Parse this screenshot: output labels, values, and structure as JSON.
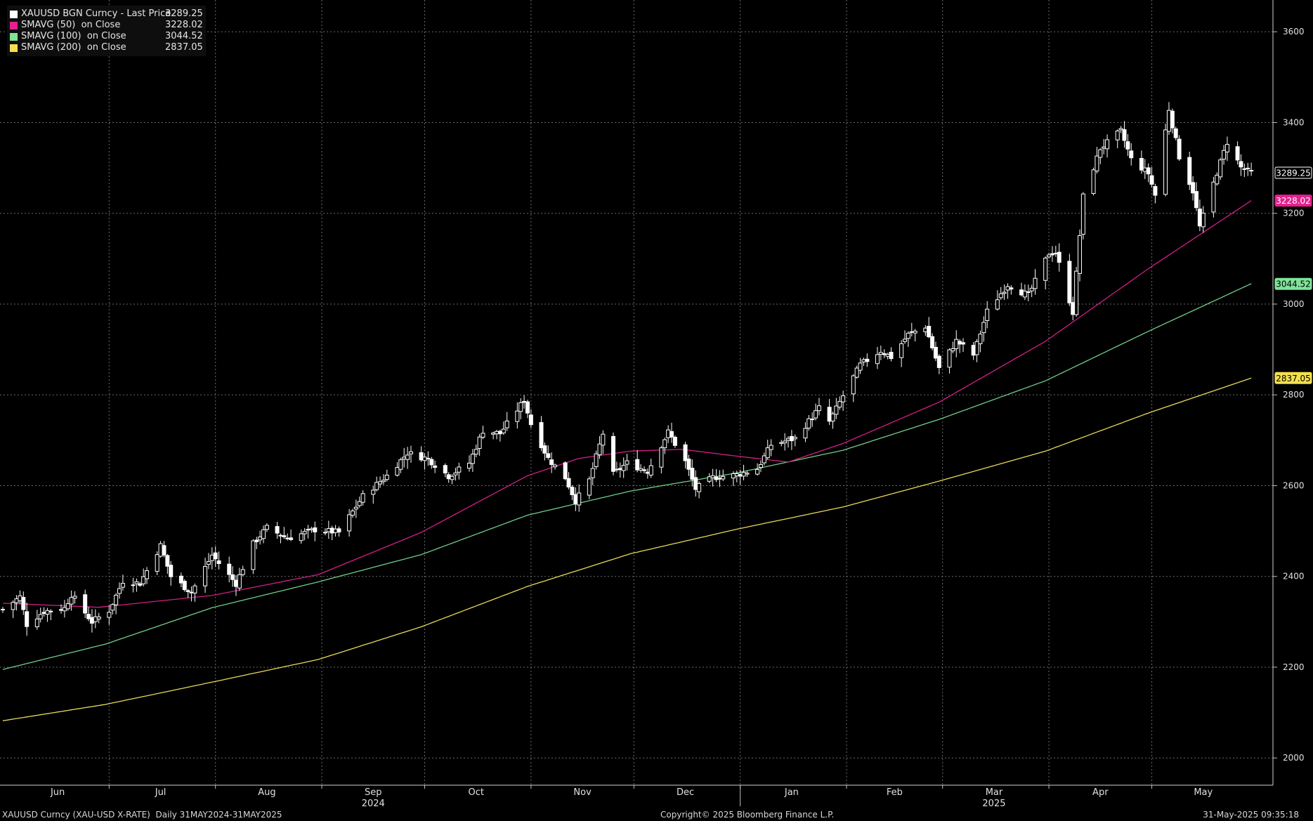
{
  "legend": [
    {
      "name": "XAUUSD BGN Curncy - Last Price",
      "value": "3289.25",
      "color": "#ffffff"
    },
    {
      "name": "SMAVG (50)  on Close",
      "value": "3228.02",
      "color": "#e6208f"
    },
    {
      "name": "SMAVG (100)  on Close",
      "value": "3044.52",
      "color": "#7fe39a"
    },
    {
      "name": "SMAVG (200)  on Close",
      "value": "2837.05",
      "color": "#f4e04d"
    }
  ],
  "footer": {
    "left": "XAUUSD Curncy (XAU-USD X-RATE)  Daily 31MAY2024-31MAY2025",
    "center": "Copyright© 2025 Bloomberg Finance L.P.",
    "right": "31-May-2025 09:35:18"
  },
  "chart_data": {
    "type": "candlestick",
    "ylim": [
      1940,
      3670
    ],
    "yticks": [
      2000,
      2200,
      2400,
      2600,
      2800,
      3000,
      3200,
      3400,
      3600
    ],
    "x_range": [
      "2024-05-31",
      "2025-05-31"
    ],
    "month_labels": [
      {
        "date": "2024-06-16",
        "label": "Jun"
      },
      {
        "date": "2024-07-16",
        "label": "Jul"
      },
      {
        "date": "2024-08-16",
        "label": "Aug"
      },
      {
        "date": "2024-09-16",
        "label": "Sep"
      },
      {
        "date": "2024-10-16",
        "label": "Oct"
      },
      {
        "date": "2024-11-16",
        "label": "Nov"
      },
      {
        "date": "2024-12-16",
        "label": "Dec"
      },
      {
        "date": "2025-01-16",
        "label": "Jan"
      },
      {
        "date": "2025-02-15",
        "label": "Feb"
      },
      {
        "date": "2025-03-16",
        "label": "Mar"
      },
      {
        "date": "2025-04-16",
        "label": "Apr"
      },
      {
        "date": "2025-05-16",
        "label": "May"
      }
    ],
    "year_labels": [
      {
        "date": "2024-09-16",
        "label": "2024"
      },
      {
        "date": "2025-03-16",
        "label": "2025"
      }
    ],
    "close_anchors": [
      [
        "2024-05-31",
        2327
      ],
      [
        "2024-06-05",
        2355
      ],
      [
        "2024-06-07",
        2294
      ],
      [
        "2024-06-12",
        2323
      ],
      [
        "2024-06-18",
        2330
      ],
      [
        "2024-06-20",
        2360
      ],
      [
        "2024-06-26",
        2300
      ],
      [
        "2024-07-01",
        2325
      ],
      [
        "2024-07-05",
        2390
      ],
      [
        "2024-07-10",
        2385
      ],
      [
        "2024-07-16",
        2468
      ],
      [
        "2024-07-19",
        2400
      ],
      [
        "2024-07-25",
        2365
      ],
      [
        "2024-07-31",
        2447
      ],
      [
        "2024-08-07",
        2384
      ],
      [
        "2024-08-12",
        2472
      ],
      [
        "2024-08-16",
        2507
      ],
      [
        "2024-08-22",
        2484
      ],
      [
        "2024-08-30",
        2503
      ],
      [
        "2024-09-06",
        2497
      ],
      [
        "2024-09-13",
        2577
      ],
      [
        "2024-09-20",
        2622
      ],
      [
        "2024-09-26",
        2672
      ],
      [
        "2024-10-02",
        2659
      ],
      [
        "2024-10-08",
        2621
      ],
      [
        "2024-10-14",
        2650
      ],
      [
        "2024-10-18",
        2721
      ],
      [
        "2024-10-23",
        2715
      ],
      [
        "2024-10-30",
        2788
      ],
      [
        "2024-11-01",
        2736
      ],
      [
        "2024-11-06",
        2660
      ],
      [
        "2024-11-11",
        2618
      ],
      [
        "2024-11-14",
        2566
      ],
      [
        "2024-11-18",
        2612
      ],
      [
        "2024-11-22",
        2715
      ],
      [
        "2024-11-25",
        2625
      ],
      [
        "2024-11-29",
        2650
      ],
      [
        "2024-12-05",
        2632
      ],
      [
        "2024-12-11",
        2718
      ],
      [
        "2024-12-16",
        2653
      ],
      [
        "2024-12-19",
        2593
      ],
      [
        "2024-12-24",
        2618
      ],
      [
        "2024-12-31",
        2624
      ],
      [
        "2025-01-06",
        2637
      ],
      [
        "2025-01-10",
        2690
      ],
      [
        "2025-01-17",
        2704
      ],
      [
        "2025-01-24",
        2771
      ],
      [
        "2025-01-27",
        2741
      ],
      [
        "2025-01-31",
        2798
      ],
      [
        "2025-02-05",
        2866
      ],
      [
        "2025-02-11",
        2897
      ],
      [
        "2025-02-14",
        2883
      ],
      [
        "2025-02-19",
        2933
      ],
      [
        "2025-02-24",
        2951
      ],
      [
        "2025-02-28",
        2858
      ],
      [
        "2025-03-05",
        2919
      ],
      [
        "2025-03-10",
        2888
      ],
      [
        "2025-03-14",
        2984
      ],
      [
        "2025-03-20",
        3043
      ],
      [
        "2025-03-26",
        3019
      ],
      [
        "2025-04-01",
        3112
      ],
      [
        "2025-04-03",
        3114
      ],
      [
        "2025-04-08",
        2982
      ],
      [
        "2025-04-11",
        3237
      ],
      [
        "2025-04-16",
        3343
      ],
      [
        "2025-04-22",
        3381
      ],
      [
        "2025-04-25",
        3319
      ],
      [
        "2025-04-30",
        3288
      ],
      [
        "2025-05-02",
        3240
      ],
      [
        "2025-05-06",
        3430
      ],
      [
        "2025-05-09",
        3325
      ],
      [
        "2025-05-13",
        3249
      ],
      [
        "2025-05-15",
        3170
      ],
      [
        "2025-05-20",
        3290
      ],
      [
        "2025-05-23",
        3357
      ],
      [
        "2025-05-27",
        3301
      ],
      [
        "2025-05-30",
        3289
      ]
    ],
    "sma50_anchors": [
      [
        "2024-05-31",
        2341
      ],
      [
        "2024-06-28",
        2332
      ],
      [
        "2024-07-31",
        2358
      ],
      [
        "2024-08-31",
        2404
      ],
      [
        "2024-09-30",
        2497
      ],
      [
        "2024-10-31",
        2622
      ],
      [
        "2024-11-15",
        2660
      ],
      [
        "2024-11-30",
        2676
      ],
      [
        "2024-12-15",
        2680
      ],
      [
        "2024-12-31",
        2665
      ],
      [
        "2025-01-15",
        2652
      ],
      [
        "2025-01-31",
        2693
      ],
      [
        "2025-02-28",
        2784
      ],
      [
        "2025-03-31",
        2918
      ],
      [
        "2025-04-30",
        3078
      ],
      [
        "2025-05-30",
        3228
      ]
    ],
    "sma100_anchors": [
      [
        "2024-05-31",
        2195
      ],
      [
        "2024-06-30",
        2251
      ],
      [
        "2024-07-31",
        2331
      ],
      [
        "2024-08-31",
        2388
      ],
      [
        "2024-09-30",
        2448
      ],
      [
        "2024-10-31",
        2535
      ],
      [
        "2024-11-30",
        2588
      ],
      [
        "2024-12-31",
        2628
      ],
      [
        "2025-01-31",
        2678
      ],
      [
        "2025-02-28",
        2746
      ],
      [
        "2025-03-31",
        2831
      ],
      [
        "2025-04-30",
        2940
      ],
      [
        "2025-05-30",
        3045
      ]
    ],
    "sma200_anchors": [
      [
        "2024-05-31",
        2082
      ],
      [
        "2024-06-30",
        2118
      ],
      [
        "2024-07-31",
        2167
      ],
      [
        "2024-08-31",
        2217
      ],
      [
        "2024-09-30",
        2289
      ],
      [
        "2024-10-31",
        2378
      ],
      [
        "2024-11-30",
        2450
      ],
      [
        "2024-12-31",
        2504
      ],
      [
        "2025-01-31",
        2553
      ],
      [
        "2025-02-28",
        2610
      ],
      [
        "2025-03-31",
        2676
      ],
      [
        "2025-04-30",
        2760
      ],
      [
        "2025-05-30",
        2837
      ]
    ],
    "last_labels": [
      {
        "value": 3289.25,
        "text": "3289.25",
        "bg": "#000000",
        "fg": "#ffffff",
        "border": "#ffffff"
      },
      {
        "value": 3228.02,
        "text": "3228.02",
        "bg": "#e6208f",
        "fg": "#ffffff",
        "border": "#e6208f"
      },
      {
        "value": 3044.52,
        "text": "3044.52",
        "bg": "#7fe39a",
        "fg": "#000000",
        "border": "#7fe39a"
      },
      {
        "value": 2837.05,
        "text": "2837.05",
        "bg": "#f4e04d",
        "fg": "#000000",
        "border": "#f4e04d"
      }
    ]
  }
}
